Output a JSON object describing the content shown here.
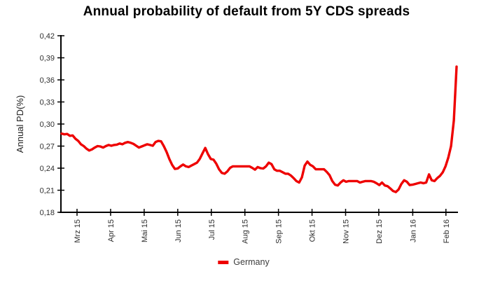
{
  "chart_data": {
    "type": "line",
    "title": "Annual probability of default from 5Y CDS spreads",
    "xlabel": "",
    "ylabel": "Annual PD(%)",
    "ylim": [
      0.18,
      0.42
    ],
    "grid": false,
    "legend_position": "bottom",
    "y_ticks": {
      "values": [
        0.42,
        0.39,
        0.36,
        0.33,
        0.3,
        0.27,
        0.24,
        0.21,
        0.18
      ],
      "labels": [
        "0,42",
        "0,39",
        "0,36",
        "0,33",
        "0,30",
        "0,27",
        "0,24",
        "0,21",
        "0,18"
      ]
    },
    "x_ticks": {
      "labels": [
        "Mrz 15",
        "Apr 15",
        "Mai 15",
        "Jun 15",
        "Jul 15",
        "Aug 15",
        "Sep 15",
        "Okt 15",
        "Nov 15",
        "Dez 15",
        "Jan 16",
        "Feb 16"
      ],
      "positions": [
        0.039,
        0.124,
        0.209,
        0.294,
        0.379,
        0.464,
        0.549,
        0.634,
        0.719,
        0.803,
        0.889,
        0.973
      ]
    },
    "series": [
      {
        "name": "Germany",
        "color": "#ee0000",
        "values": [
          0.287,
          0.286,
          0.2865,
          0.284,
          0.2845,
          0.28,
          0.277,
          0.2725,
          0.27,
          0.2665,
          0.264,
          0.2655,
          0.268,
          0.27,
          0.2695,
          0.268,
          0.27,
          0.2715,
          0.2705,
          0.2715,
          0.272,
          0.2735,
          0.2725,
          0.2745,
          0.2755,
          0.2745,
          0.273,
          0.2705,
          0.268,
          0.2695,
          0.271,
          0.2725,
          0.2715,
          0.2705,
          0.2755,
          0.277,
          0.2765,
          0.27,
          0.262,
          0.2525,
          0.2445,
          0.239,
          0.2395,
          0.2425,
          0.245,
          0.2425,
          0.2415,
          0.2435,
          0.2455,
          0.2475,
          0.2525,
          0.26,
          0.2675,
          0.259,
          0.2525,
          0.2515,
          0.246,
          0.2385,
          0.2335,
          0.2325,
          0.2355,
          0.2405,
          0.2425,
          0.2425,
          0.2425,
          0.2425,
          0.2425,
          0.2425,
          0.2425,
          0.2405,
          0.238,
          0.2415,
          0.24,
          0.2395,
          0.2425,
          0.2475,
          0.2455,
          0.2385,
          0.2365,
          0.2365,
          0.2345,
          0.2325,
          0.2325,
          0.23,
          0.2265,
          0.2225,
          0.2205,
          0.2275,
          0.2435,
          0.249,
          0.2445,
          0.2425,
          0.2385,
          0.2385,
          0.2385,
          0.2385,
          0.235,
          0.2305,
          0.2225,
          0.2175,
          0.2165,
          0.2205,
          0.2235,
          0.2215,
          0.2225,
          0.2225,
          0.2225,
          0.2225,
          0.2205,
          0.2215,
          0.2225,
          0.2225,
          0.2225,
          0.2215,
          0.2195,
          0.217,
          0.2205,
          0.2165,
          0.2155,
          0.2125,
          0.209,
          0.2075,
          0.211,
          0.2185,
          0.2235,
          0.2215,
          0.217,
          0.2175,
          0.2185,
          0.2195,
          0.2205,
          0.2195,
          0.2205,
          0.2315,
          0.2235,
          0.2225,
          0.2265,
          0.2295,
          0.2345,
          0.2425,
          0.2545,
          0.27,
          0.305,
          0.378
        ]
      }
    ]
  }
}
